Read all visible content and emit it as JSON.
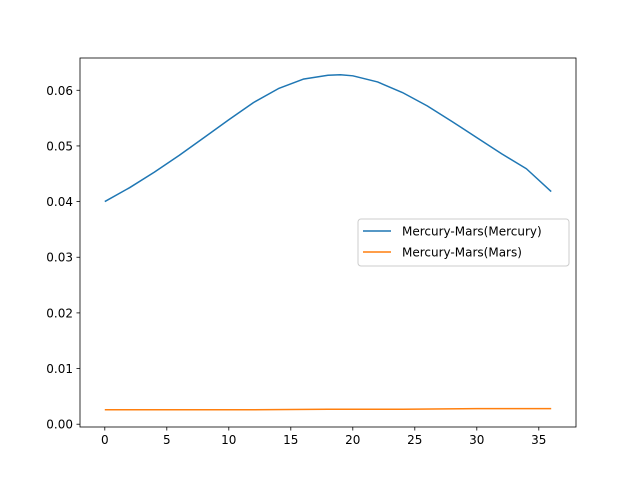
{
  "chart_data": {
    "type": "line",
    "title": "",
    "xlabel": "",
    "ylabel": "",
    "xlim": [
      -2.0,
      38.0
    ],
    "ylim": [
      -0.0005,
      0.0658
    ],
    "xticks": [
      0,
      5,
      10,
      15,
      20,
      25,
      30,
      35
    ],
    "xtick_labels": [
      "0",
      "5",
      "10",
      "15",
      "20",
      "25",
      "30",
      "35"
    ],
    "yticks": [
      0.0,
      0.01,
      0.02,
      0.03,
      0.04,
      0.05,
      0.06
    ],
    "ytick_labels": [
      "0.00",
      "0.01",
      "0.02",
      "0.03",
      "0.04",
      "0.05",
      "0.06"
    ],
    "grid": false,
    "legend_position": "center-right",
    "series": [
      {
        "name": "Mercury-Mars(Mercury)",
        "color": "#1f77b4",
        "x": [
          0,
          2,
          4,
          6,
          8,
          10,
          12,
          14,
          16,
          18,
          19,
          20,
          22,
          24,
          26,
          28,
          30,
          32,
          34,
          36
        ],
        "values": [
          0.04,
          0.0425,
          0.0453,
          0.0483,
          0.0515,
          0.0547,
          0.0578,
          0.0603,
          0.062,
          0.0627,
          0.0628,
          0.0626,
          0.0615,
          0.0596,
          0.0572,
          0.0544,
          0.0515,
          0.0486,
          0.0459,
          0.0418
        ]
      },
      {
        "name": "Mercury-Mars(Mars)",
        "color": "#ff7f0e",
        "x": [
          0,
          6,
          12,
          18,
          24,
          30,
          36
        ],
        "values": [
          0.0026,
          0.0026,
          0.0026,
          0.0027,
          0.0027,
          0.0028,
          0.0028
        ]
      }
    ]
  }
}
